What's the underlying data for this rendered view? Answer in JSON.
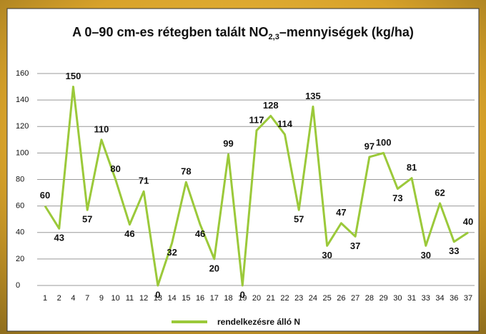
{
  "chart_data": {
    "type": "line",
    "title": {
      "main": "A 0–90 cm-es rétegben talált NO",
      "sub": "2,3",
      "end": "–mennyiségek (kg/ha)"
    },
    "categories": [
      "1",
      "2",
      "4",
      "7",
      "9",
      "10",
      "11",
      "12",
      "13",
      "14",
      "15",
      "16",
      "17",
      "18",
      "19",
      "20",
      "21",
      "22",
      "23",
      "24",
      "25",
      "26",
      "27",
      "28",
      "29",
      "30",
      "31",
      "33",
      "34",
      "36",
      "37"
    ],
    "series": [
      {
        "name": "rendelkezésre álló N",
        "color": "#9bc93a",
        "values": [
          60,
          43,
          150,
          57,
          110,
          80,
          46,
          71,
          0,
          32,
          78,
          46,
          20,
          99,
          0,
          117,
          128,
          114,
          57,
          135,
          30,
          47,
          37,
          97,
          100,
          73,
          81,
          30,
          62,
          33,
          40
        ]
      }
    ],
    "ylim": [
      0,
      160
    ],
    "yticks": [
      0,
      20,
      40,
      60,
      80,
      100,
      120,
      140,
      160
    ],
    "grid": true,
    "legend": "bottom"
  }
}
